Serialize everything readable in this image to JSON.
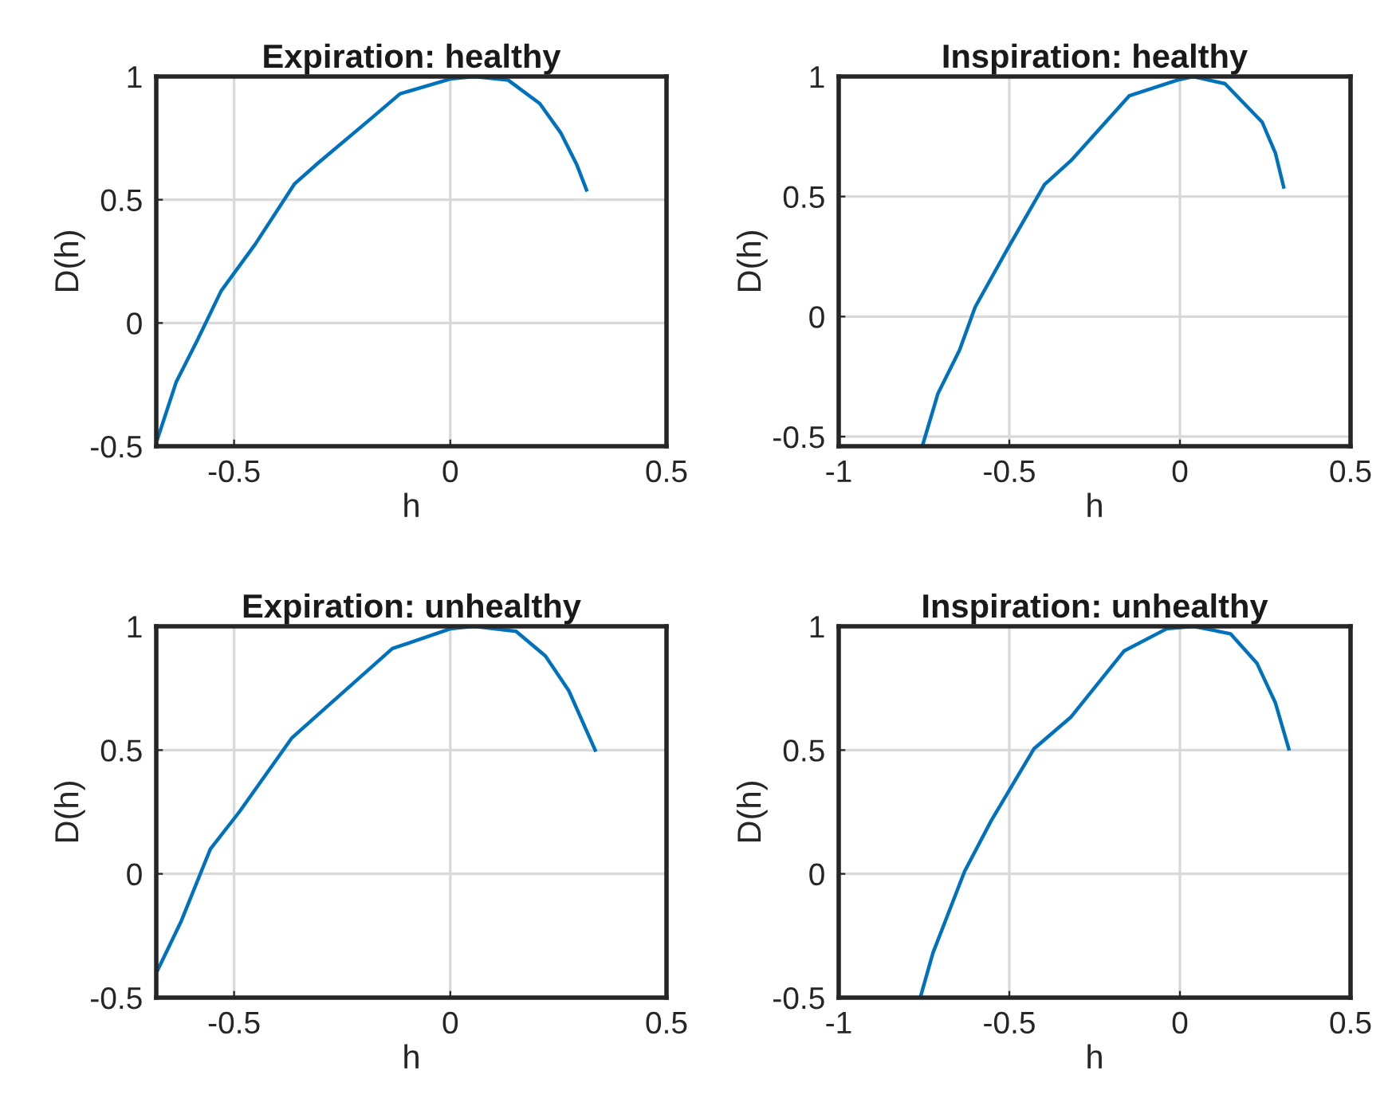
{
  "chart_data": [
    {
      "type": "line",
      "title": "Expiration: healthy",
      "xlabel": "h",
      "ylabel": "D(h)",
      "xlim": [
        -0.68,
        0.5
      ],
      "xticks": [
        -0.5,
        0,
        0.5
      ],
      "ylim": [
        -0.5,
        1
      ],
      "yticks": [
        -0.5,
        0,
        0.5,
        1
      ],
      "grid": true,
      "series": [
        {
          "color": "#0072bd",
          "x": [
            -0.677,
            -0.634,
            -0.585,
            -0.53,
            -0.451,
            -0.36,
            -0.305,
            -0.183,
            -0.116,
            0,
            0.055,
            0.134,
            0.207,
            0.256,
            0.293,
            0.315
          ],
          "values": [
            -0.47,
            -0.24,
            -0.07,
            0.13,
            0.32,
            0.565,
            0.65,
            0.83,
            0.93,
            0.99,
            1,
            0.985,
            0.89,
            0.77,
            0.64,
            0.54
          ]
        }
      ]
    },
    {
      "type": "line",
      "title": "Inspiration: healthy",
      "xlabel": "h",
      "ylabel": "D(h)",
      "xlim": [
        -1,
        0.5
      ],
      "xticks": [
        -1,
        -0.5,
        0,
        0.5
      ],
      "ylim": [
        -0.54,
        1
      ],
      "yticks": [
        -0.5,
        0,
        0.5,
        1
      ],
      "grid": true,
      "series": [
        {
          "color": "#0072bd",
          "x": [
            -0.755,
            -0.709,
            -0.646,
            -0.6,
            -0.506,
            -0.397,
            -0.319,
            -0.148,
            -0.008,
            0.039,
            0.132,
            0.241,
            0.28,
            0.304
          ],
          "values": [
            -0.54,
            -0.32,
            -0.14,
            0.04,
            0.28,
            0.55,
            0.65,
            0.92,
            0.985,
            1,
            0.97,
            0.81,
            0.68,
            0.54
          ]
        }
      ]
    },
    {
      "type": "line",
      "title": "Expiration: unhealthy",
      "xlabel": "h",
      "ylabel": "D(h)",
      "xlim": [
        -0.68,
        0.5
      ],
      "xticks": [
        -0.5,
        0,
        0.5
      ],
      "ylim": [
        -0.5,
        1
      ],
      "yticks": [
        -0.5,
        0,
        0.5,
        1
      ],
      "grid": true,
      "series": [
        {
          "color": "#0072bd",
          "x": [
            -0.677,
            -0.622,
            -0.555,
            -0.488,
            -0.366,
            -0.305,
            -0.134,
            0,
            0.055,
            0.152,
            0.22,
            0.274,
            0.335
          ],
          "values": [
            -0.39,
            -0.19,
            0.1,
            0.25,
            0.55,
            0.645,
            0.91,
            0.99,
            1,
            0.98,
            0.88,
            0.74,
            0.5
          ]
        }
      ]
    },
    {
      "type": "line",
      "title": "Inspiration: unhealthy",
      "xlabel": "h",
      "ylabel": "D(h)",
      "xlim": [
        -1,
        0.5
      ],
      "xticks": [
        -1,
        -0.5,
        0,
        0.5
      ],
      "ylim": [
        -0.5,
        1
      ],
      "yticks": [
        -0.5,
        0,
        0.5,
        1
      ],
      "grid": true,
      "series": [
        {
          "color": "#0072bd",
          "x": [
            -0.759,
            -0.724,
            -0.631,
            -0.553,
            -0.428,
            -0.319,
            -0.164,
            -0.039,
            0.039,
            0.148,
            0.226,
            0.28,
            0.319
          ],
          "values": [
            -0.49,
            -0.32,
            0.01,
            0.215,
            0.505,
            0.634,
            0.9,
            0.99,
            1,
            0.97,
            0.85,
            0.69,
            0.505
          ]
        }
      ]
    }
  ]
}
